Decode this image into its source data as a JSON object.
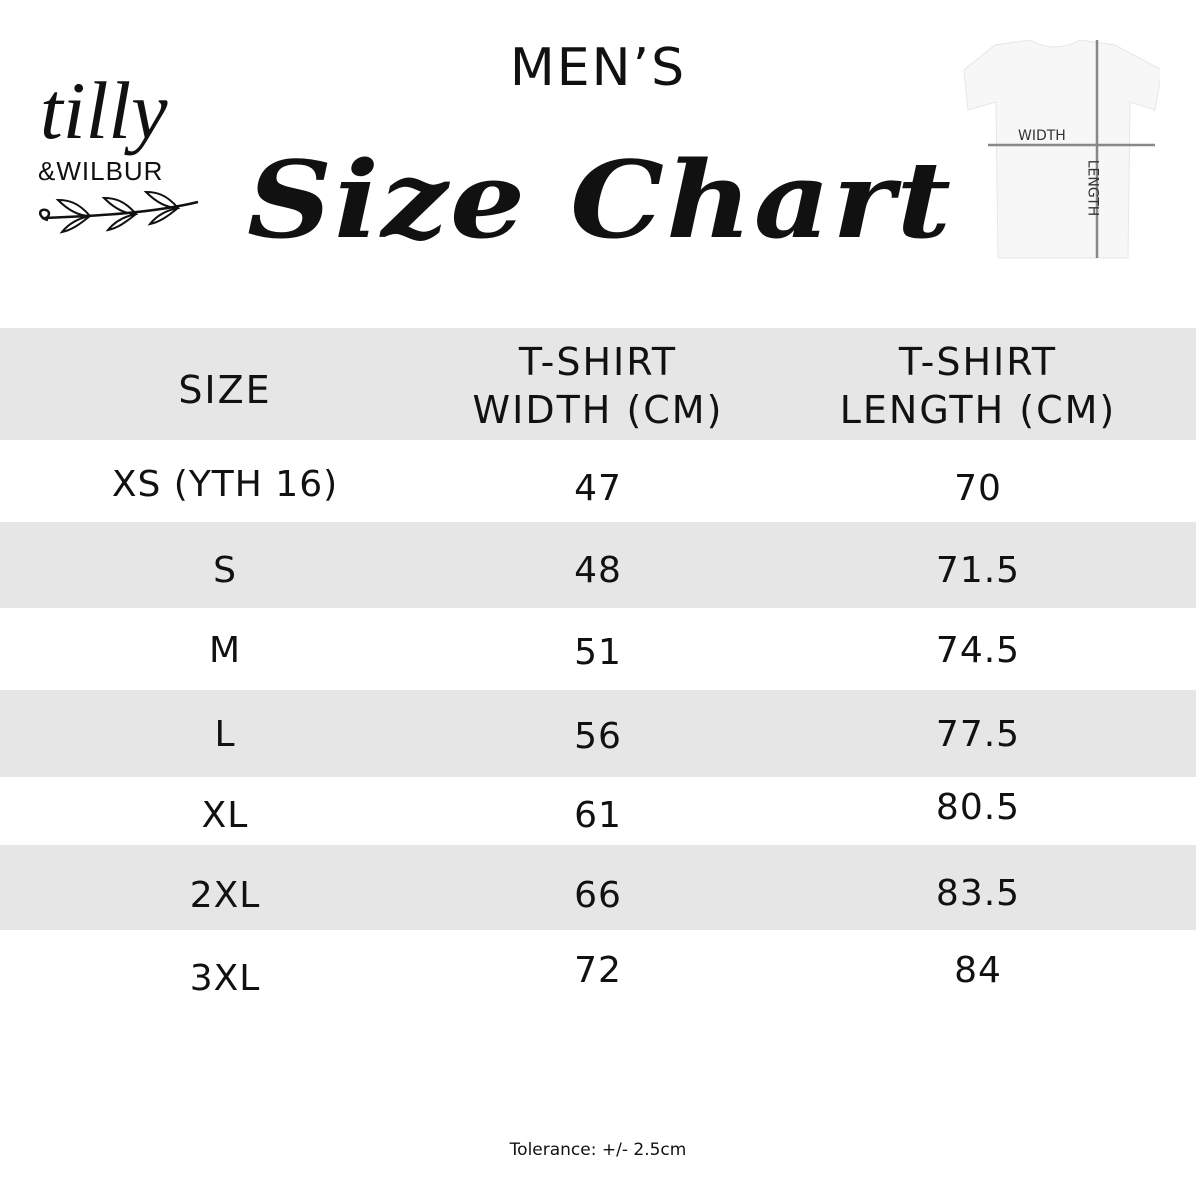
{
  "brand": {
    "logo_line1": "tilly",
    "logo_line2": "&WILBUR"
  },
  "header": {
    "title_top": "MEN’S",
    "title_script": "Size Chart"
  },
  "diagram": {
    "width_label": "WIDTH",
    "length_label": "LENGTH"
  },
  "table": {
    "columns": [
      {
        "line1": "SIZE",
        "line2": ""
      },
      {
        "line1": "T-SHIRT",
        "line2": "WIDTH (CM)"
      },
      {
        "line1": "T-SHIRT",
        "line2": "LENGTH (CM)"
      }
    ],
    "rows": [
      {
        "size": "XS (YTH 16)",
        "width": "47",
        "length": "70"
      },
      {
        "size": "S",
        "width": "48",
        "length": "71.5"
      },
      {
        "size": "M",
        "width": "51",
        "length": "74.5"
      },
      {
        "size": "L",
        "width": "56",
        "length": "77.5"
      },
      {
        "size": "XL",
        "width": "61",
        "length": "80.5"
      },
      {
        "size": "2XL",
        "width": "66",
        "length": "83.5"
      },
      {
        "size": "3XL",
        "width": "72",
        "length": "84"
      }
    ],
    "band_color": "#e6e6e6"
  },
  "footer": {
    "tolerance": "Tolerance: +/- 2.5cm"
  }
}
